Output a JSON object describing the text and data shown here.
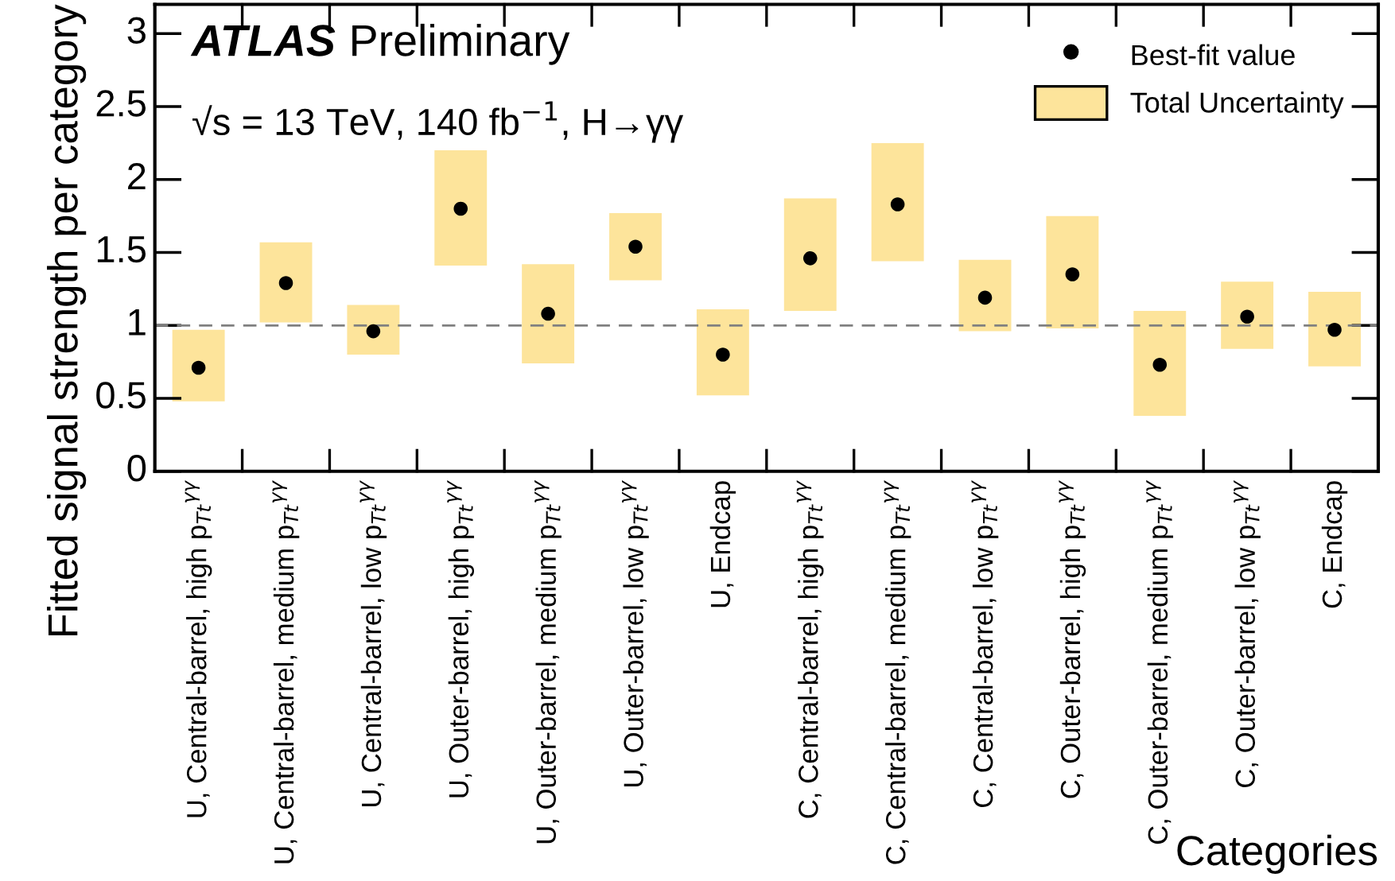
{
  "chart_data": {
    "type": "scatter",
    "ylabel": "Fitted signal strength per category",
    "xlabel": "Categories",
    "categories": [
      "U, Central-barrel, high p$_{Tt}$$^{γγ}$",
      "U, Central-barrel, medium p$_{Tt}$$^{γγ}$",
      "U, Central-barrel, low p$_{Tt}$$^{γγ}$",
      "U, Outer-barrel, high p$_{Tt}$$^{γγ}$",
      "U, Outer-barrel, medium p$_{Tt}$$^{γγ}$",
      "U, Outer-barrel, low p$_{Tt}$$^{γγ}$",
      "U, Endcap",
      "C, Central-barrel, high p$_{Tt}$$^{γγ}$",
      "C, Central-barrel, medium p$_{Tt}$$^{γγ}$",
      "C, Central-barrel, low p$_{Tt}$$^{γγ}$",
      "C, Outer-barrel, high p$_{Tt}$$^{γγ}$",
      "C, Outer-barrel, medium p$_{Tt}$$^{γγ}$",
      "C, Outer-barrel, low p$_{Tt}$$^{γγ}$",
      "C, Endcap"
    ],
    "series": [
      {
        "type": "bar",
        "name": "Total Uncertainty",
        "color": "#fde49b",
        "base": [
          0.48,
          1.02,
          0.8,
          1.41,
          0.74,
          1.31,
          0.52,
          1.1,
          1.44,
          0.96,
          0.98,
          0.38,
          0.84,
          0.72
        ],
        "values": [
          0.49,
          0.55,
          0.34,
          0.79,
          0.68,
          0.46,
          0.59,
          0.77,
          0.81,
          0.49,
          0.77,
          0.72,
          0.46,
          0.51
        ]
      },
      {
        "name": "Best-fit value",
        "color": "#000000",
        "values": [
          0.71,
          1.29,
          0.96,
          1.8,
          1.08,
          1.54,
          0.8,
          1.46,
          1.83,
          1.19,
          1.35,
          0.73,
          1.06,
          0.97
        ]
      }
    ],
    "ylim": [
      0,
      3.2
    ],
    "yticks": [
      0,
      0.5,
      1,
      1.5,
      2,
      2.5,
      3
    ],
    "ref_lines": [
      {
        "axis": "y",
        "value": 1,
        "color": "#808080",
        "line_style": "dashed"
      }
    ],
    "annotations": [
      "ATLAS",
      "Preliminary",
      "√s = 13 TeV, 140 fb$^{−1}$, H→γγ"
    ],
    "marker": "circle",
    "legend": "top right",
    "grid": false
  }
}
